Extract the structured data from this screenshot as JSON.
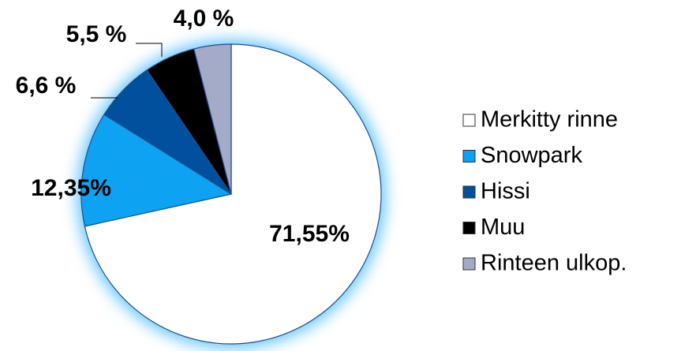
{
  "chart_data": {
    "type": "pie",
    "categories": [
      "Merkitty rinne",
      "Snowpark",
      "Hissi",
      "Muu",
      "Rinteen ulkop."
    ],
    "values": [
      71.55,
      12.35,
      6.6,
      5.5,
      4.0
    ],
    "value_labels": [
      "71,55%",
      "12,35%",
      "6,6 %",
      "5,5 %",
      "4,0 %"
    ],
    "colors": [
      "#ffffff",
      "#0ea2f2",
      "#00509e",
      "#000000",
      "#a3abc9"
    ]
  }
}
